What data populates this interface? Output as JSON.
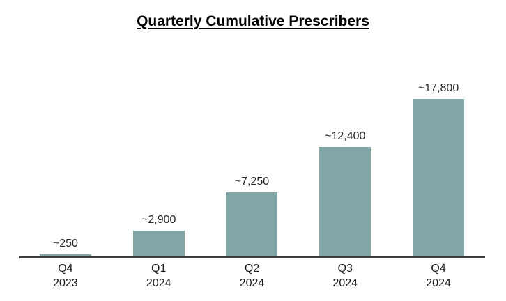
{
  "chart_data": {
    "type": "bar",
    "title": "Quarterly Cumulative Prescribers",
    "categories": [
      {
        "quarter": "Q4",
        "year": "2023"
      },
      {
        "quarter": "Q1",
        "year": "2024"
      },
      {
        "quarter": "Q2",
        "year": "2024"
      },
      {
        "quarter": "Q3",
        "year": "2024"
      },
      {
        "quarter": "Q4",
        "year": "2024"
      }
    ],
    "values": [
      250,
      2900,
      7250,
      12400,
      17800
    ],
    "value_labels": [
      "~250",
      "~2,900",
      "~7,250",
      "~12,400",
      "~17,800"
    ],
    "xlabel": "",
    "ylabel": "",
    "y_axis_shown": false,
    "gridlines": false,
    "legend": null,
    "colors": {
      "bar_fill": "#80A7A5",
      "axis_line": "#3B3B3B",
      "value_label": "#262626",
      "tick_label": "#1A1A1A",
      "title": "#000000"
    }
  }
}
